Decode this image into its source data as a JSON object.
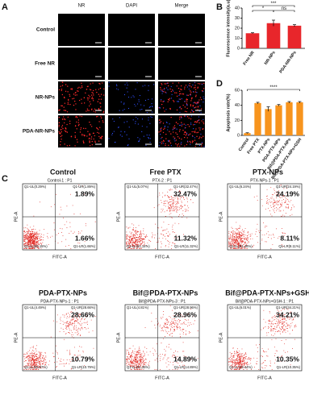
{
  "panel_labels": [
    "A",
    "B",
    "C",
    "D"
  ],
  "microscopy": {
    "columns": [
      "NR",
      "DAPI",
      "Merge"
    ],
    "rows": [
      "Control",
      "Free NR",
      "NR-NPs",
      "PDA-NR-NPs"
    ]
  },
  "chart_data": [
    {
      "type": "bar",
      "y_label": "Fluorescence intensity(a.u)",
      "categories": [
        "Free NR",
        "NR-NPs",
        "PDA-NR-NPs"
      ],
      "values": [
        15,
        25,
        22.5
      ],
      "errors": [
        0.5,
        3,
        1
      ],
      "color": "#e8262b",
      "ylim": [
        0,
        40
      ],
      "yticks": [
        0,
        10,
        20,
        30,
        40
      ],
      "significance": [
        "*",
        "***",
        "ns"
      ]
    },
    {
      "type": "bar",
      "y_label": "Apoptosis rate(%)",
      "categories": [
        "Control",
        "Free PTX",
        "PTX-NPs",
        "PDA-PTX-NPs",
        "Bif@PDA-PTX-NPs",
        "Bif@PDA-PTX-NPs+GSH"
      ],
      "values": [
        3,
        43,
        35,
        40,
        44,
        44
      ],
      "errors": [
        0.5,
        1,
        3,
        1,
        1,
        1
      ],
      "color": "#f7941d",
      "ylim": [
        0,
        60
      ],
      "yticks": [
        0,
        20,
        40,
        60
      ],
      "significance": [
        "****"
      ]
    }
  ],
  "flow": {
    "x_label": "FITC-A",
    "y_label": "PE-A",
    "plots": [
      {
        "title": "Control",
        "gate": "Control-1 : P1",
        "ul": "Q1-UL(0.29%)",
        "ur": "Q1-UR(1.89%)",
        "ll": "Q1-LL(96.15%)",
        "lr": "Q1-LR(1.66%)",
        "ur_big": "1.89%",
        "lr_big": "1.66%"
      },
      {
        "title": "Free PTX",
        "gate": "PTX-2 : P1",
        "ul": "Q1-UL(5.07%)",
        "ur": "Q1-UR(32.47%)",
        "ll": "Q1-LL(51.14%)",
        "lr": "Q1-LR(11.32%)",
        "ur_big": "32.47%",
        "lr_big": "11.32%"
      },
      {
        "title": "PTX-NPs",
        "gate": "PTX-NPs-1 : P1",
        "ul": "Q1-UL(6.24%)",
        "ur": "Q1-UR(24.19%)",
        "ll": "Q1-LL(61.46%)",
        "lr": "Q1-LR(8.11%)",
        "ur_big": "24.19%",
        "lr_big": "8.11%"
      },
      {
        "title": "PDA-PTX-NPs",
        "gate": "PDA-PTX-NPs-1 : P1",
        "ul": "Q1-UL(4.49%)",
        "ur": "Q1-UR(28.66%)",
        "ll": "Q1-LL(56.07%)",
        "lr": "Q1-LR(10.79%)",
        "ur_big": "28.66%",
        "lr_big": "10.79%"
      },
      {
        "title": "Bif@PDA-PTX-NPs",
        "gate": "Bif@PDA-PTX-NPs-3 : P1",
        "ul": "Q1-UL(4.81%)",
        "ur": "Q1-UR(28.96%)",
        "ll": "Q1-LL(51.35%)",
        "lr": "Q1-LR(14.89%)",
        "ur_big": "28.96%",
        "lr_big": "14.89%"
      },
      {
        "title": "Bif@PDA-PTX-NPs+GSH",
        "gate": "Bif@PDA-PTX-NPs+GSH-1 : P1",
        "ul": "Q1-UL(6.01%)",
        "ur": "Q1-UR(34.21%)",
        "ll": "Q1-LL(49.44%)",
        "lr": "Q1-LR(10.35%)",
        "ur_big": "34.21%",
        "lr_big": "10.35%"
      }
    ]
  }
}
